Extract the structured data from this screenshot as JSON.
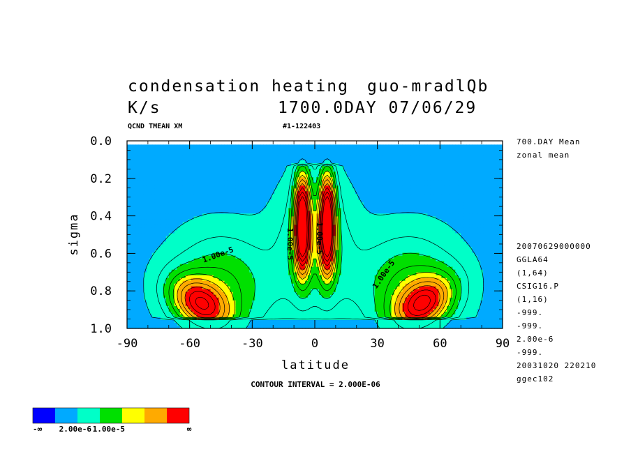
{
  "header": {
    "title": "condensation heating",
    "title_right": "guo-mradlQb",
    "units": "K/s",
    "date": "1700.0DAY 07/06/29",
    "variable": "QCND TMEAN XM",
    "run_id": "#1-122403"
  },
  "side_info": {
    "top": [
      "700.DAY Mean",
      "zonal mean"
    ],
    "bottom": [
      "20070629000000",
      "GGLA64",
      "(1,64)",
      "CSIG16.P",
      "(1,16)",
      "-999.",
      "-999.",
      "2.00e-6",
      "-999.",
      "20031020 220210",
      "ggec102"
    ]
  },
  "contour_interval_text": "CONTOUR INTERVAL = 2.000E-06",
  "colors": {
    "lev0": "#0000ff",
    "lev1": "#00aaff",
    "lev2": "#00ffc8",
    "lev3": "#00e000",
    "lev4": "#ffff00",
    "lev5": "#ffaa00",
    "lev6": "#ff0000"
  },
  "colorbar": {
    "labels": [
      "-∞",
      "2.00e-6",
      "1.00e-5",
      "∞"
    ]
  },
  "chart_data": {
    "type": "heatmap",
    "subtype": "filled-contour",
    "xlabel": "latitude",
    "ylabel": "sigma",
    "xlim": [
      -90,
      90
    ],
    "ylim": [
      0.0,
      1.0
    ],
    "y_inverted": true,
    "x_ticks": [
      "-90",
      "-60",
      "-30",
      "0",
      "30",
      "60",
      "90"
    ],
    "y_ticks": [
      "0.0",
      "0.2",
      "0.4",
      "0.6",
      "0.8",
      "1.0"
    ],
    "contour_interval": 2e-06,
    "levels": [
      2e-06,
      4e-06,
      6e-06,
      8e-06,
      1e-05,
      1.2e-05,
      1.4e-05,
      1.6e-05,
      1.8e-05,
      2e-05,
      2.2e-05
    ],
    "fill_bounds": [
      -1e+30,
      2e-06,
      4e-06,
      6e-06,
      1e-05,
      1.2e-05,
      1.6e-05,
      1e+30
    ],
    "contour_labels": [
      {
        "text": "1.00e-5",
        "lat": -46,
        "sigma": 0.62
      },
      {
        "text": "1.00e-5",
        "lat": 34,
        "sigma": 0.72
      },
      {
        "text": "1.00e-5",
        "lat": -13,
        "sigma": 0.55
      },
      {
        "text": "1.00e-5",
        "lat": 1,
        "sigma": 0.52
      }
    ],
    "features": {
      "itcz_cores": [
        {
          "lat": -6,
          "sigma": 0.44,
          "peak": 2.2e-05
        },
        {
          "lat": 6,
          "sigma": 0.44,
          "peak": 2.2e-05
        }
      ],
      "midlatitude_maxima": [
        {
          "lat": -55,
          "sigma": 0.87,
          "peak": 1.4e-05
        },
        {
          "lat": 52,
          "sigma": 0.87,
          "peak": 1.4e-05
        }
      ],
      "background": 1e-06
    }
  }
}
